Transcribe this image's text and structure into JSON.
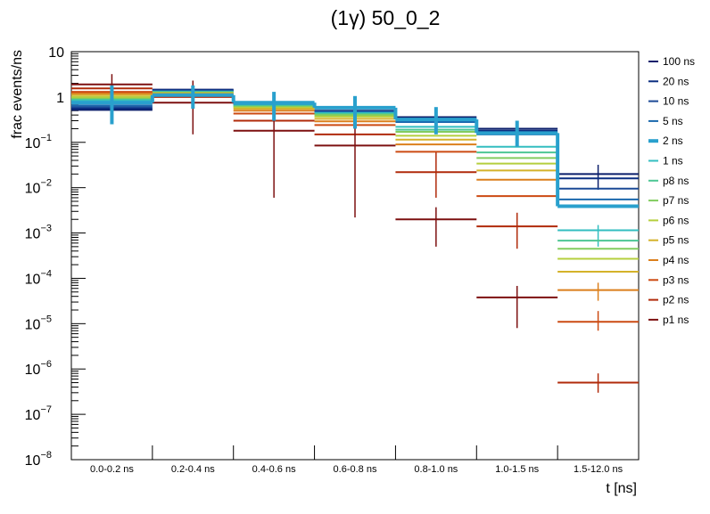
{
  "chart_data": {
    "type": "line",
    "title": "(1γ) 50_0_2",
    "xlabel": "t [ns]",
    "ylabel": "frac events/ns",
    "log_y": true,
    "ylim": [
      1e-08,
      10
    ],
    "grid": false,
    "legend_position": "right",
    "categories": [
      "0.0-0.2 ns",
      "0.2-0.4 ns",
      "0.4-0.6 ns",
      "0.6-0.8 ns",
      "0.8-1.0 ns",
      "1.0-1.5 ns",
      "1.5-12.0 ns"
    ],
    "y_ticks": [
      {
        "value": 1e-08,
        "label": "10",
        "exp": "−8"
      },
      {
        "value": 1e-07,
        "label": "10",
        "exp": "−7"
      },
      {
        "value": 1e-06,
        "label": "10",
        "exp": "−6"
      },
      {
        "value": 1e-05,
        "label": "10",
        "exp": "−5"
      },
      {
        "value": 0.0001,
        "label": "10",
        "exp": "−4"
      },
      {
        "value": 0.001,
        "label": "10",
        "exp": "−3"
      },
      {
        "value": 0.01,
        "label": "10",
        "exp": "−2"
      },
      {
        "value": 0.1,
        "label": "10",
        "exp": "−1"
      },
      {
        "value": 1,
        "label": "1",
        "exp": ""
      },
      {
        "value": 10,
        "label": "10",
        "exp": ""
      }
    ],
    "series": [
      {
        "name": "100 ns",
        "color": "#0b1f6b",
        "highlight": false,
        "values": [
          0.52,
          1.45,
          0.72,
          0.5,
          0.36,
          0.2,
          0.02
        ],
        "err_low": [
          null,
          null,
          null,
          null,
          null,
          null,
          0.009
        ],
        "err_high": [
          null,
          null,
          null,
          null,
          null,
          null,
          0.032
        ]
      },
      {
        "name": "20 ns",
        "color": "#0a2d80",
        "highlight": false,
        "values": [
          0.56,
          1.42,
          0.71,
          0.49,
          0.33,
          0.18,
          0.016
        ],
        "err_low": [],
        "err_high": []
      },
      {
        "name": "10 ns",
        "color": "#1b4a96",
        "highlight": false,
        "values": [
          0.6,
          1.38,
          0.7,
          0.48,
          0.3,
          0.16,
          0.0095
        ],
        "err_low": [],
        "err_high": []
      },
      {
        "name": "5 ns",
        "color": "#1a68ad",
        "highlight": false,
        "values": [
          0.65,
          1.35,
          0.68,
          0.47,
          0.28,
          0.15,
          0.0055
        ],
        "err_low": [],
        "err_high": []
      },
      {
        "name": "2 ns",
        "color": "#29a0cd",
        "highlight": true,
        "values": [
          0.75,
          1.1,
          0.75,
          0.58,
          0.32,
          0.16,
          0.0039
        ],
        "err_low": [
          0.25,
          0.55,
          0.3,
          0.2,
          0.15,
          0.08,
          null
        ],
        "err_high": [
          1.8,
          1.8,
          1.3,
          1.05,
          0.6,
          0.3,
          null
        ]
      },
      {
        "name": "1 ns",
        "color": "#33bec0",
        "highlight": false,
        "values": [
          0.85,
          1.3,
          0.65,
          0.44,
          0.22,
          0.08,
          0.00115
        ],
        "err_low": [
          null,
          null,
          null,
          null,
          null,
          null,
          0.0005
        ],
        "err_high": [
          null,
          null,
          null,
          null,
          null,
          null,
          0.0015
        ]
      },
      {
        "name": "p8 ns",
        "color": "#4dc694",
        "highlight": false,
        "values": [
          0.9,
          1.28,
          0.63,
          0.42,
          0.19,
          0.06,
          0.00068
        ],
        "err_low": [],
        "err_high": []
      },
      {
        "name": "p7 ns",
        "color": "#82cc5f",
        "highlight": false,
        "values": [
          0.95,
          1.25,
          0.61,
          0.4,
          0.17,
          0.045,
          0.00045
        ],
        "err_low": [],
        "err_high": []
      },
      {
        "name": "p6 ns",
        "color": "#b5cf3d",
        "highlight": false,
        "values": [
          1.0,
          1.22,
          0.58,
          0.37,
          0.14,
          0.034,
          0.00027
        ],
        "err_low": [],
        "err_high": []
      },
      {
        "name": "p5 ns",
        "color": "#d4b22a",
        "highlight": false,
        "values": [
          1.1,
          1.2,
          0.55,
          0.33,
          0.115,
          0.024,
          0.00014
        ],
        "err_low": [],
        "err_high": []
      },
      {
        "name": "p4 ns",
        "color": "#db7f1c",
        "highlight": false,
        "values": [
          1.2,
          1.15,
          0.5,
          0.29,
          0.09,
          0.015,
          5.5e-05
        ],
        "err_low": [
          null,
          null,
          null,
          null,
          null,
          null,
          3.2e-05
        ],
        "err_high": [
          null,
          null,
          null,
          null,
          null,
          null,
          8e-05
        ]
      },
      {
        "name": "p3 ns",
        "color": "#cc4a12",
        "highlight": false,
        "values": [
          1.3,
          1.1,
          0.43,
          0.24,
          0.062,
          0.0065,
          1.1e-05
        ],
        "err_low": [
          null,
          null,
          null,
          null,
          null,
          null,
          7e-06
        ],
        "err_high": [
          null,
          null,
          null,
          null,
          null,
          null,
          1.9e-05
        ]
      },
      {
        "name": "p2 ns",
        "color": "#b02a0a",
        "highlight": false,
        "values": [
          1.55,
          1.0,
          0.3,
          0.15,
          0.022,
          0.0014,
          5e-07
        ],
        "err_low": [
          null,
          null,
          null,
          null,
          0.006,
          0.00045,
          3e-07
        ],
        "err_high": [
          null,
          null,
          null,
          null,
          0.06,
          0.0028,
          8e-07
        ]
      },
      {
        "name": "p1 ns",
        "color": "#7d1010",
        "highlight": false,
        "values": [
          1.9,
          0.75,
          0.18,
          0.085,
          0.002,
          3.8e-05,
          null
        ],
        "err_low": [
          0.6,
          0.15,
          0.006,
          0.0022,
          0.0005,
          8e-06,
          null
        ],
        "err_high": [
          3.2,
          2.3,
          0.6,
          0.8,
          0.0037,
          6.8e-05,
          null
        ]
      }
    ]
  }
}
